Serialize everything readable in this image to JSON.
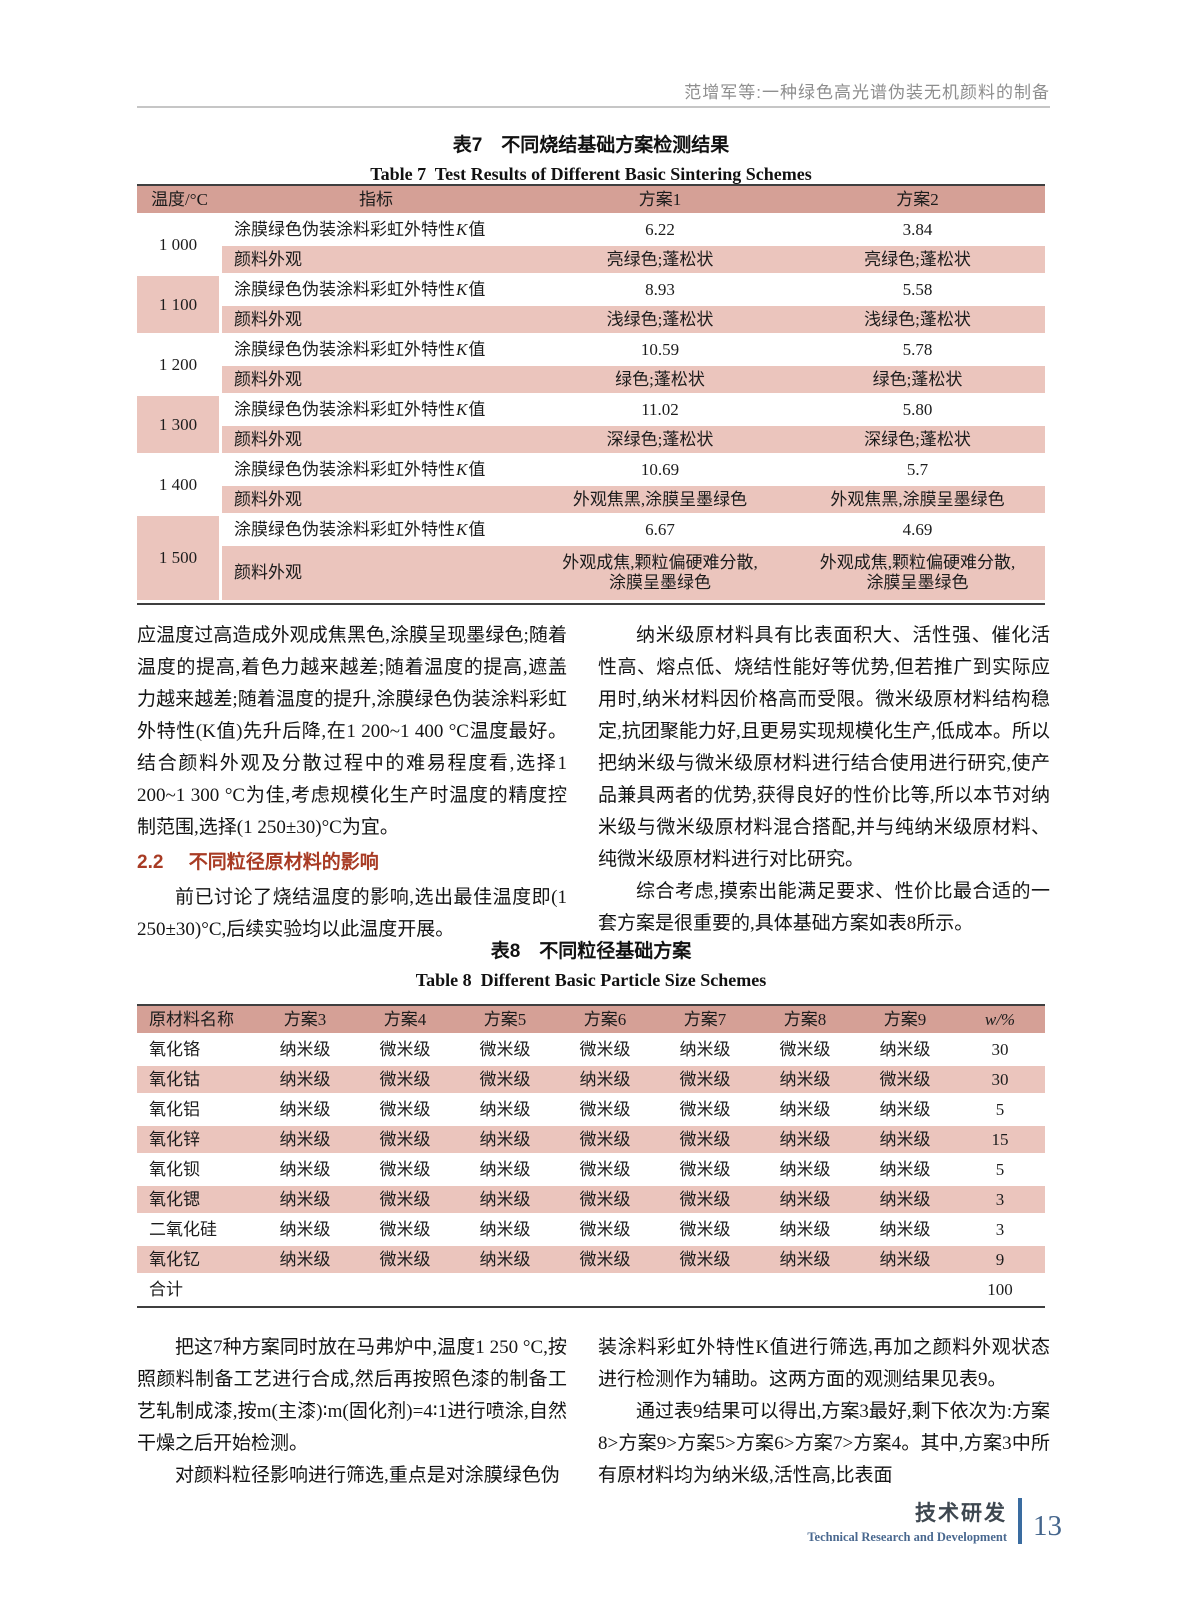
{
  "header": {
    "running_title": "范增军等:一种绿色高光谱伪装无机颜料的制备"
  },
  "colors": {
    "table_header_bg": "#d5a096",
    "table_stripe_bg": "#ebc5bd",
    "section_heading": "#a83b24",
    "footer_accent": "#3a6ca0",
    "running_head_gray": "#8e8e8e"
  },
  "table7": {
    "title_cn": "表7　不同烧结基础方案检测结果",
    "title_en": "Table 7  Test Results of Different Basic Sintering Schemes",
    "col_headers": [
      "温度/°C",
      "指标",
      "方案1",
      "方案2"
    ],
    "k_label": {
      "prefix": "涂膜绿色伪装涂料彩虹外特性",
      "k": "K",
      "suffix": "值"
    },
    "appearance_label": "颜料外观",
    "groups": [
      {
        "temp": "1 000",
        "k1": "6.22",
        "k2": "3.84",
        "a1": "亮绿色;蓬松状",
        "a2": "亮绿色;蓬松状"
      },
      {
        "temp": "1 100",
        "k1": "8.93",
        "k2": "5.58",
        "a1": "浅绿色;蓬松状",
        "a2": "浅绿色;蓬松状"
      },
      {
        "temp": "1 200",
        "k1": "10.59",
        "k2": "5.78",
        "a1": "绿色;蓬松状",
        "a2": "绿色;蓬松状"
      },
      {
        "temp": "1 300",
        "k1": "11.02",
        "k2": "5.80",
        "a1": "深绿色;蓬松状",
        "a2": "深绿色;蓬松状"
      },
      {
        "temp": "1 400",
        "k1": "10.69",
        "k2": "5.7",
        "a1": "外观焦黑,涂膜呈墨绿色",
        "a2": "外观焦黑,涂膜呈墨绿色"
      },
      {
        "temp": "1 500",
        "k1": "6.67",
        "k2": "4.69",
        "a1": "外观成焦,颗粒偏硬难分散,\n涂膜呈墨绿色",
        "a2": "外观成焦,颗粒偏硬难分散,\n涂膜呈墨绿色"
      }
    ]
  },
  "left_column": {
    "p1": "应温度过高造成外观成焦黑色,涂膜呈现墨绿色;随着温度的提高,着色力越来越差;随着温度的提高,遮盖力越来越差;随着温度的提升,涂膜绿色伪装涂料彩虹外特性(K值)先升后降,在1 200~1 400 °C温度最好。结合颜料外观及分散过程中的难易程度看,选择1 200~1 300 °C为佳,考虑规模化生产时温度的精度控制范围,选择(1 250±30)°C为宜。",
    "heading": {
      "number": "2.2",
      "title": "不同粒径原材料的影响"
    },
    "p2": "前已讨论了烧结温度的影响,选出最佳温度即(1 250±30)°C,后续实验均以此温度开展。"
  },
  "right_column": {
    "p1": "纳米级原材料具有比表面积大、活性强、催化活性高、熔点低、烧结性能好等优势,但若推广到实际应用时,纳米材料因价格高而受限。微米级原材料结构稳定,抗团聚能力好,且更易实现规模化生产,低成本。所以把纳米级与微米级原材料进行结合使用进行研究,使产品兼具两者的优势,获得良好的性价比等,所以本节对纳米级与微米级原材料混合搭配,并与纯纳米级原材料、纯微米级原材料进行对比研究。",
    "p2": "综合考虑,摸索出能满足要求、性价比最合适的一套方案是很重要的,具体基础方案如表8所示。"
  },
  "table8": {
    "title_cn": "表8　不同粒径基础方案",
    "title_en": "Table 8  Different Basic Particle Size Schemes",
    "col_headers": [
      "原材料名称",
      "方案3",
      "方案4",
      "方案5",
      "方案6",
      "方案7",
      "方案8",
      "方案9",
      "w/%"
    ],
    "rows": [
      {
        "name": "氧化铬",
        "cells": [
          "纳米级",
          "微米级",
          "微米级",
          "微米级",
          "纳米级",
          "微米级",
          "纳米级"
        ],
        "w": "30"
      },
      {
        "name": "氧化钴",
        "cells": [
          "纳米级",
          "微米级",
          "微米级",
          "纳米级",
          "微米级",
          "纳米级",
          "微米级"
        ],
        "w": "30"
      },
      {
        "name": "氧化铝",
        "cells": [
          "纳米级",
          "微米级",
          "纳米级",
          "微米级",
          "微米级",
          "纳米级",
          "纳米级"
        ],
        "w": "5"
      },
      {
        "name": "氧化锌",
        "cells": [
          "纳米级",
          "微米级",
          "纳米级",
          "微米级",
          "微米级",
          "纳米级",
          "纳米级"
        ],
        "w": "15"
      },
      {
        "name": "氧化钡",
        "cells": [
          "纳米级",
          "微米级",
          "纳米级",
          "微米级",
          "微米级",
          "纳米级",
          "纳米级"
        ],
        "w": "5"
      },
      {
        "name": "氧化锶",
        "cells": [
          "纳米级",
          "微米级",
          "纳米级",
          "微米级",
          "微米级",
          "纳米级",
          "纳米级"
        ],
        "w": "3"
      },
      {
        "name": "二氧化硅",
        "cells": [
          "纳米级",
          "微米级",
          "纳米级",
          "微米级",
          "微米级",
          "纳米级",
          "纳米级"
        ],
        "w": "3"
      },
      {
        "name": "氧化钇",
        "cells": [
          "纳米级",
          "微米级",
          "纳米级",
          "微米级",
          "微米级",
          "纳米级",
          "纳米级"
        ],
        "w": "9"
      },
      {
        "name": "合计",
        "cells": [
          "",
          "",
          "",
          "",
          "",
          "",
          ""
        ],
        "w": "100"
      }
    ]
  },
  "bottom_left": {
    "p1": "把这7种方案同时放在马弗炉中,温度1 250 °C,按照颜料制备工艺进行合成,然后再按照色漆的制备工艺轧制成漆,按m(主漆)∶m(固化剂)=4∶1进行喷涂,自然干燥之后开始检测。",
    "p2": "对颜料粒径影响进行筛选,重点是对涂膜绿色伪"
  },
  "bottom_right": {
    "p1": "装涂料彩虹外特性K值进行筛选,再加之颜料外观状态进行检测作为辅助。这两方面的观测结果见表9。",
    "p2": "通过表9结果可以得出,方案3最好,剩下依次为:方案8>方案9>方案5>方案6>方案7>方案4。其中,方案3中所有原材料均为纳米级,活性高,比表面"
  },
  "footer": {
    "section_cn": "技术研发",
    "section_en": "Technical Research and Development",
    "page_number": "13"
  }
}
